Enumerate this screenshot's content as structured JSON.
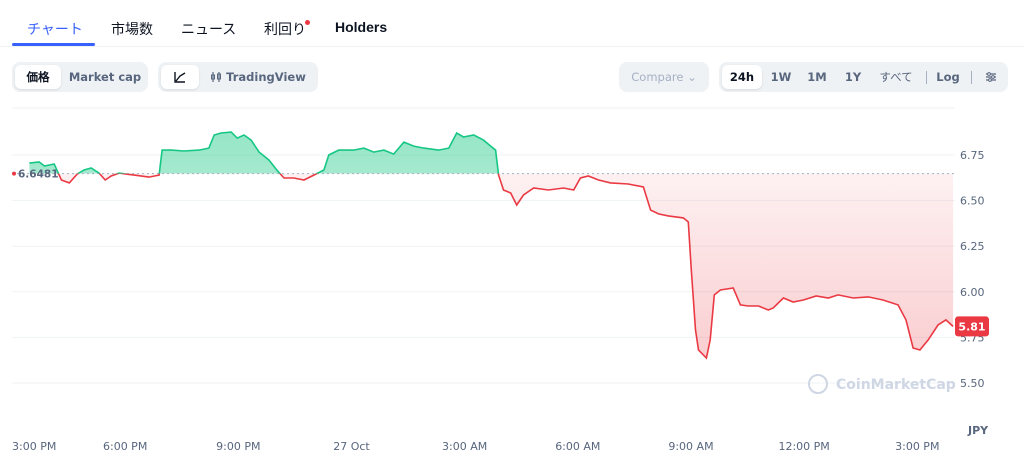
{
  "tabs": [
    "チャート",
    "市場数",
    "ニュース",
    "利回り",
    "Holders"
  ],
  "toggle": [
    "価格",
    "Market cap"
  ],
  "chart_tools": [
    "TradingView"
  ],
  "compare": "Compare",
  "ranges": [
    "24h",
    "1W",
    "1M",
    "1Y",
    "すべて"
  ],
  "log": "Log",
  "chart_data": {
    "type": "line",
    "reference_price": 6.6481,
    "reference_label": "6.6481",
    "current_price": 5.81,
    "current_label": "5.81",
    "currency": "JPY",
    "watermark": "CoinMarketCap",
    "up_color": "#16c784",
    "down_color": "#ea3943",
    "x": [
      0.46,
      0.72,
      0.86,
      1.12,
      1.31,
      1.52,
      1.73,
      1.91,
      2.1,
      2.31,
      2.47,
      2.63,
      2.84,
      3.24,
      3.63,
      3.9,
      3.98,
      4.22,
      4.56,
      4.96,
      5.22,
      5.36,
      5.54,
      5.81,
      5.97,
      6.15,
      6.34,
      6.55,
      6.81,
      7.02,
      7.21,
      7.47,
      7.74,
      8.0,
      8.27,
      8.4,
      8.66,
      9.06,
      9.33,
      9.59,
      9.86,
      10.12,
      10.39,
      10.65,
      10.92,
      11.31,
      11.58,
      11.79,
      11.97,
      12.24,
      12.5,
      12.69,
      12.82,
      12.9,
      13.03,
      13.22,
      13.38,
      13.56,
      13.83,
      14.22,
      14.62,
      14.89,
      15.07,
      15.28,
      15.55,
      15.87,
      16.34,
      16.74,
      16.93,
      17.14,
      17.4,
      17.8,
      17.93,
      18.01,
      18.12,
      18.2,
      18.41,
      18.51,
      18.62,
      18.78,
      19.12,
      19.2,
      19.31,
      19.52,
      19.79,
      20.05,
      20.18,
      20.45,
      20.71,
      20.98,
      21.32,
      21.64,
      21.9,
      22.3,
      22.7,
      23.09,
      23.49,
      23.7,
      23.89,
      24.07,
      24.29,
      24.55,
      24.76,
      24.95
    ],
    "values": [
      6.706,
      6.712,
      6.69,
      6.701,
      6.613,
      6.597,
      6.646,
      6.668,
      6.679,
      6.651,
      6.613,
      6.635,
      6.651,
      6.64,
      6.629,
      6.64,
      6.777,
      6.777,
      6.772,
      6.777,
      6.788,
      6.86,
      6.871,
      6.876,
      6.843,
      6.86,
      6.832,
      6.766,
      6.723,
      6.668,
      6.624,
      6.624,
      6.613,
      6.64,
      6.668,
      6.75,
      6.777,
      6.777,
      6.788,
      6.766,
      6.777,
      6.755,
      6.821,
      6.799,
      6.788,
      6.777,
      6.788,
      6.871,
      6.849,
      6.86,
      6.832,
      6.799,
      6.777,
      6.64,
      6.558,
      6.542,
      6.476,
      6.531,
      6.569,
      6.558,
      6.569,
      6.558,
      6.624,
      6.635,
      6.613,
      6.597,
      6.591,
      6.575,
      6.448,
      6.427,
      6.416,
      6.405,
      6.383,
      6.12,
      5.791,
      5.681,
      5.637,
      5.736,
      5.983,
      6.01,
      6.021,
      5.983,
      5.928,
      5.922,
      5.922,
      5.9,
      5.911,
      5.966,
      5.944,
      5.955,
      5.977,
      5.966,
      5.983,
      5.966,
      5.972,
      5.955,
      5.928,
      5.846,
      5.692,
      5.681,
      5.736,
      5.818,
      5.846,
      5.81
    ],
    "xlim": [
      0,
      25
    ],
    "xticks": [
      {
        "value": 0,
        "label": "3:00 PM"
      },
      {
        "value": 3,
        "label": "6:00 PM"
      },
      {
        "value": 6,
        "label": "9:00 PM"
      },
      {
        "value": 9,
        "label": "27 Oct"
      },
      {
        "value": 12,
        "label": "3:00 AM"
      },
      {
        "value": 15,
        "label": "6:00 AM"
      },
      {
        "value": 18,
        "label": "9:00 AM"
      },
      {
        "value": 21,
        "label": "12:00 PM"
      },
      {
        "value": 24,
        "label": "3:00 PM"
      }
    ],
    "ylim": [
      5.242,
      7.008
    ],
    "yticks": [
      6.75,
      {
        "value": 6.5,
        "label": "6.50"
      },
      6.25,
      {
        "value": 6,
        "label": "6.00"
      },
      5.75,
      {
        "value": 5.5,
        "label": "5.50"
      }
    ],
    "grid": true
  }
}
